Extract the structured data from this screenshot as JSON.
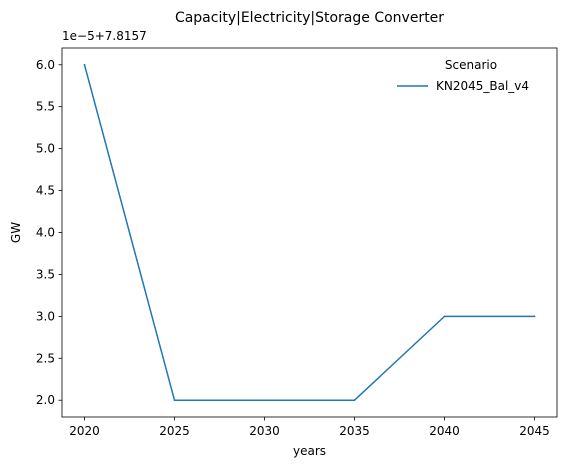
{
  "chart_data": {
    "type": "line",
    "title": "Capacity|Electricity|Storage Converter",
    "xlabel": "years",
    "ylabel": "GW",
    "offset_label": "1e−5+7.8157",
    "x": [
      2020,
      2025,
      2030,
      2035,
      2040,
      2045
    ],
    "xticks": [
      "2020",
      "2025",
      "2030",
      "2035",
      "2040",
      "2045"
    ],
    "yticks": [
      "2.0",
      "2.5",
      "3.0",
      "3.5",
      "4.0",
      "4.5",
      "5.0",
      "5.5",
      "6.0"
    ],
    "ylim": [
      1.8,
      6.2
    ],
    "xlim": [
      2018.75,
      2046.25
    ],
    "series": [
      {
        "name": "KN2045_Bal_v4",
        "color": "#1f77b4",
        "values": [
          6.0,
          2.0,
          2.0,
          2.0,
          3.0,
          3.0
        ]
      }
    ],
    "legend": {
      "title": "Scenario",
      "position": "top-right"
    },
    "grid": false
  }
}
